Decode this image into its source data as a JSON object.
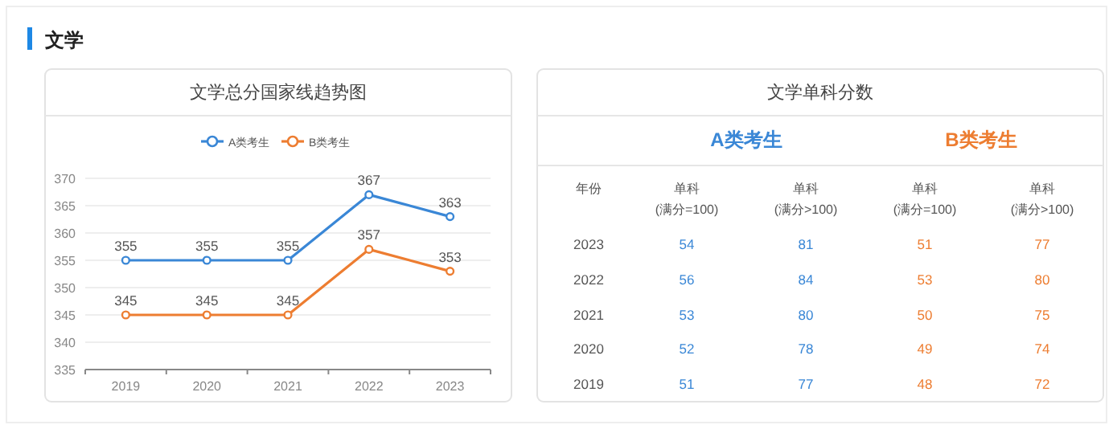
{
  "chart_data": [
    {
      "type": "line",
      "title": "文学总分国家线趋势图",
      "annotations": [
        "文学"
      ],
      "categories": [
        "2019",
        "2020",
        "2021",
        "2022",
        "2023"
      ],
      "series": [
        {
          "name": "A类考生",
          "color": "#3a87d6",
          "values": [
            355,
            355,
            355,
            367,
            363
          ]
        },
        {
          "name": "B类考生",
          "color": "#ed7d31",
          "values": [
            345,
            345,
            345,
            357,
            353
          ]
        }
      ],
      "ylim": [
        335,
        370
      ],
      "yticks": [
        335,
        340,
        345,
        350,
        355,
        360,
        365,
        370
      ],
      "grid": "y",
      "legend": "top",
      "marker": "circle",
      "data_labels": true
    },
    {
      "type": "heatmap",
      "title": "文学单科分数",
      "data_labels": true,
      "annotations": [
        "A类考生",
        "B类考生",
        "年份"
      ],
      "categories": [
        "单科\n(满分=100)",
        "单科\n(满分>100)",
        "单科\n(满分=100)",
        "单科\n(满分>100)"
      ],
      "y_categories": [
        "2023",
        "2022",
        "2021",
        "2020",
        "2019"
      ],
      "colors": [
        "#3a87d6",
        "#3a87d6",
        "#ed7d31",
        "#ed7d31"
      ],
      "cells": [
        [
          54,
          81,
          51,
          77
        ],
        [
          56,
          84,
          53,
          80
        ],
        [
          53,
          80,
          50,
          75
        ],
        [
          52,
          78,
          49,
          74
        ],
        [
          51,
          77,
          48,
          72
        ]
      ]
    }
  ]
}
